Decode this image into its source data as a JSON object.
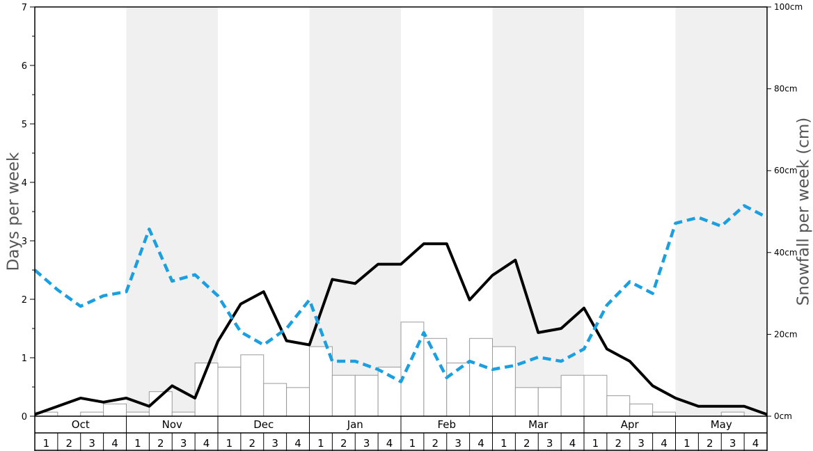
{
  "chart_data": {
    "type": "bar",
    "title": "",
    "ylabel": "Days per week",
    "y2label": "Snowfall per week (cm)",
    "ylim": [
      0,
      7
    ],
    "y2lim": [
      0,
      100
    ],
    "yticks": [
      "0",
      "1",
      "2",
      "3",
      "4",
      "5",
      "6",
      "7"
    ],
    "y2ticks": [
      "0cm",
      "20cm",
      "40cm",
      "60cm",
      "80cm",
      "100cm"
    ],
    "months": [
      "Oct",
      "Nov",
      "Dec",
      "Jan",
      "Feb",
      "Mar",
      "Apr",
      "May"
    ],
    "weeks": [
      "1",
      "2",
      "3",
      "4"
    ],
    "shaded_months": [
      "Nov",
      "Jan",
      "Mar",
      "May"
    ],
    "colors": {
      "bars_fill": "#ffffff",
      "bars_stroke": "#999999",
      "solid_line": "#000000",
      "dashed_line": "#1a9fe0",
      "shading": "#f0f0f0"
    },
    "series": [
      {
        "type": "bar",
        "axis": "right",
        "values": [
          1,
          0,
          1,
          3,
          1,
          6,
          1,
          13,
          12,
          15,
          8,
          7,
          17,
          10,
          10,
          12,
          23,
          19,
          13,
          19,
          17,
          7,
          7,
          10,
          10,
          5,
          3,
          1,
          0,
          0,
          1,
          0
        ]
      },
      {
        "type": "line",
        "style": "solid",
        "axis": "left",
        "values": [
          0.03,
          0.17,
          0.31,
          0.24,
          0.31,
          0.17,
          0.52,
          0.31,
          1.28,
          1.92,
          2.13,
          1.29,
          1.22,
          2.34,
          2.27,
          2.6,
          2.6,
          2.95,
          2.95,
          1.99,
          2.41,
          2.67,
          1.43,
          1.5,
          1.85,
          1.15,
          0.94,
          0.52,
          0.31,
          0.17,
          0.17,
          0.17,
          0.03
        ]
      },
      {
        "type": "line",
        "style": "dashed",
        "axis": "left",
        "values": [
          2.5,
          2.16,
          1.88,
          2.06,
          2.13,
          3.2,
          2.31,
          2.42,
          2.06,
          1.44,
          1.22,
          1.5,
          1.99,
          0.94,
          0.94,
          0.8,
          0.59,
          1.43,
          0.66,
          0.94,
          0.8,
          0.87,
          1.01,
          0.94,
          1.15,
          1.9,
          2.3,
          2.1,
          3.3,
          3.4,
          3.25,
          3.6,
          3.4
        ]
      }
    ]
  }
}
